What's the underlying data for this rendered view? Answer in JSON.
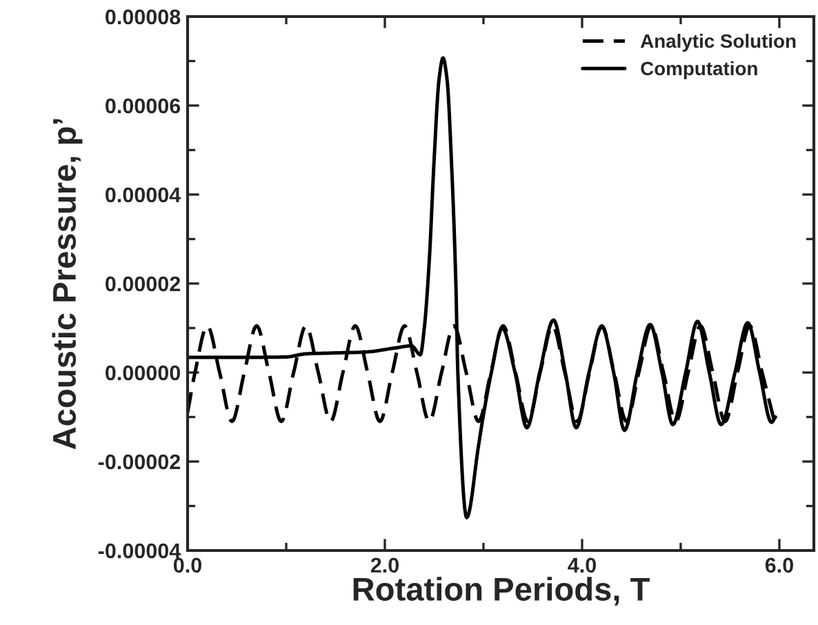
{
  "chart_data": {
    "type": "line",
    "xlabel": "Rotation Periods, T",
    "ylabel": "Acoustic Pressure, p’",
    "xlim": [
      0,
      6.35
    ],
    "xticks": [
      {
        "value": 0,
        "label": "0.0"
      },
      {
        "value": 2,
        "label": "2.0"
      },
      {
        "value": 4,
        "label": "4.0"
      },
      {
        "value": 6,
        "label": "6.0"
      }
    ],
    "ylim": [
      -4e-05,
      8e-05
    ],
    "yticks": [
      {
        "value": -4e-05,
        "label": "-0.00004"
      },
      {
        "value": -2e-05,
        "label": "-0.00002"
      },
      {
        "value": 0,
        "label": "0.00000"
      },
      {
        "value": 2e-05,
        "label": "0.00002"
      },
      {
        "value": 4e-05,
        "label": "0.00004"
      },
      {
        "value": 6e-05,
        "label": "0.00006"
      },
      {
        "value": 8e-05,
        "label": "0.00008"
      }
    ],
    "grid": false,
    "legend": "top right",
    "series": [
      {
        "name": "Analytic Solution",
        "color": "#000000",
        "line_style": "dashed",
        "x": [
          0,
          0.075,
          0.2,
          0.325,
          0.45,
          0.575,
          0.7,
          0.825,
          0.95,
          1.075,
          1.2,
          1.325,
          1.45,
          1.575,
          1.7,
          1.825,
          1.95,
          2.075,
          2.2,
          2.325,
          2.45,
          2.575,
          2.7,
          2.825,
          2.95,
          3.075,
          3.2,
          3.325,
          3.45,
          3.575,
          3.7,
          3.825,
          3.95,
          4.075,
          4.2,
          4.325,
          4.45,
          4.575,
          4.7,
          4.825,
          4.95,
          5.075,
          5.2,
          5.325,
          5.45,
          5.575,
          5.7,
          5.825,
          5.95
        ],
        "values": [
          -9e-06,
          0,
          1.05e-05,
          0,
          -1.1e-05,
          0,
          1.05e-05,
          0,
          -1.1e-05,
          0,
          1.05e-05,
          0,
          -1.1e-05,
          0,
          1.05e-05,
          0,
          -1.1e-05,
          0,
          1.05e-05,
          0,
          -1.1e-05,
          0,
          1.05e-05,
          0,
          -1.1e-05,
          0,
          1.05e-05,
          0,
          -1.1e-05,
          0,
          1.05e-05,
          0,
          -1.1e-05,
          0,
          1.05e-05,
          0,
          -1.1e-05,
          0,
          1.05e-05,
          0,
          -1.1e-05,
          0,
          1.05e-05,
          0,
          -1.1e-05,
          0,
          1.05e-05,
          0,
          -1.1e-05
        ]
      },
      {
        "name": "Computation",
        "color": "#000000",
        "line_style": "solid",
        "x": [
          0,
          0.5,
          1.0,
          1.2,
          1.5,
          1.8,
          2.1,
          2.27,
          2.36,
          2.4,
          2.45,
          2.5,
          2.55,
          2.59,
          2.63,
          2.68,
          2.72,
          2.74,
          2.83,
          2.95,
          2.99,
          3.08,
          3.19,
          3.32,
          3.44,
          3.57,
          3.71,
          3.83,
          3.94,
          4.07,
          4.2,
          4.32,
          4.43,
          4.56,
          4.69,
          4.81,
          4.92,
          5.05,
          5.17,
          5.29,
          5.41,
          5.55,
          5.68,
          5.8,
          5.92,
          5.96
        ],
        "values": [
          3.4e-06,
          3.4e-06,
          3.5e-06,
          4.2e-06,
          4.4e-06,
          4.6e-06,
          5.5e-06,
          6e-06,
          4e-06,
          1e-05,
          2.5e-05,
          4.8e-05,
          6.6e-05,
          7.07e-05,
          6.6e-05,
          4.5e-05,
          2e-05,
          0,
          -3.26e-05,
          -1.64e-05,
          -1.08e-05,
          0,
          1e-05,
          0,
          -1.24e-05,
          0,
          1.18e-05,
          0,
          -1.24e-05,
          0,
          1.03e-05,
          0,
          -1.3e-05,
          0,
          1.08e-05,
          0,
          -1.17e-05,
          0,
          1.15e-05,
          0,
          -1.17e-05,
          0,
          1.12e-05,
          0,
          -1.12e-05,
          -1e-05
        ]
      }
    ]
  }
}
